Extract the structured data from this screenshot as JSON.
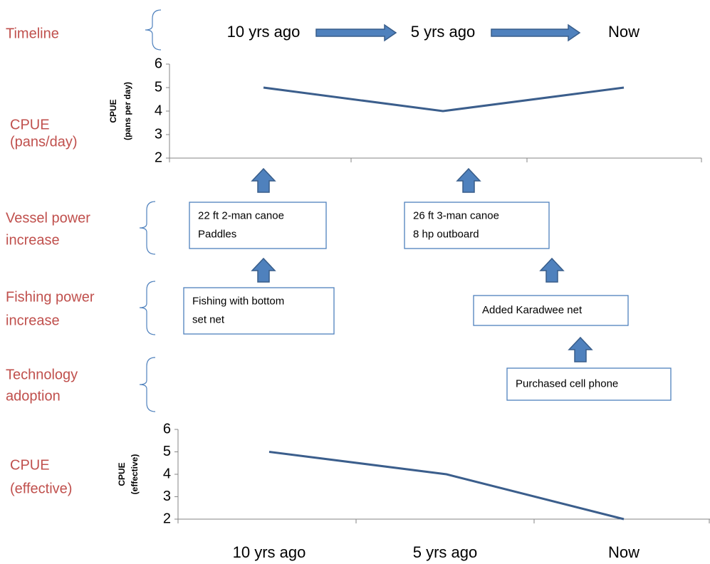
{
  "row_labels": [
    {
      "lines": [
        "Timeline"
      ]
    },
    {
      "lines": [
        "CPUE",
        "(pans/day)"
      ]
    },
    {
      "lines": [
        "Vessel power",
        "increase"
      ]
    },
    {
      "lines": [
        "Fishing power",
        "increase"
      ]
    },
    {
      "lines": [
        "Technology",
        "adoption"
      ]
    },
    {
      "lines": [
        "CPUE",
        "(effective)"
      ]
    }
  ],
  "timeline": [
    "10 yrs ago",
    "5 yrs ago",
    "Now"
  ],
  "charts": [
    {
      "type": "line",
      "y_label": [
        "CPUE",
        "(pans per day)"
      ],
      "values": [
        5,
        4,
        5
      ],
      "ylim": [
        2,
        6
      ],
      "yticks": [
        2,
        3,
        4,
        5,
        6
      ]
    },
    {
      "type": "line",
      "y_label": [
        "CPUE",
        "(effective)"
      ],
      "values": [
        5,
        4,
        2
      ],
      "ylim": [
        2,
        6
      ],
      "yticks": [
        2,
        3,
        4,
        5,
        6
      ]
    }
  ],
  "boxes": [
    {
      "lines": [
        "22 ft 2-man canoe",
        "Paddles"
      ]
    },
    {
      "lines": [
        "26 ft 3-man canoe",
        "8 hp outboard"
      ]
    },
    {
      "lines": [
        "Fishing with bottom",
        "set net"
      ]
    },
    {
      "lines": [
        "Added Karadwee net"
      ]
    },
    {
      "lines": [
        "Purchased cell phone"
      ]
    }
  ],
  "x_labels": [
    "10 yrs ago",
    "5 yrs ago",
    "Now"
  ]
}
